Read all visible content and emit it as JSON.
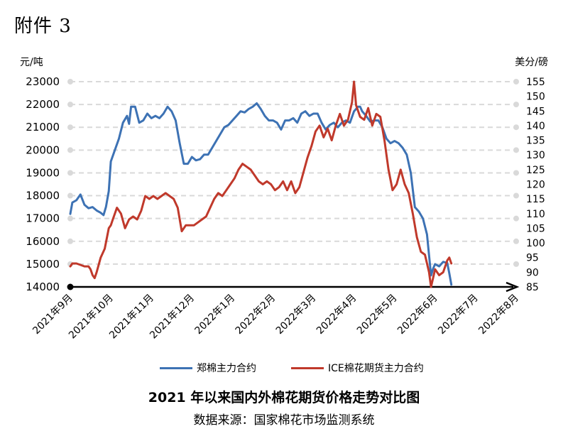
{
  "header": {
    "attachment_label": "附件 3"
  },
  "chart_data": {
    "type": "line",
    "title": "2021 年以来国内外棉花期货价格走势对比图",
    "source": "数据来源：国家棉花市场监测系统",
    "ylabel_left": "元/吨",
    "ylabel_right": "美分/磅",
    "ylim_left": [
      14000,
      23000
    ],
    "ylim_right": [
      85,
      155
    ],
    "yticks_left": [
      "23000",
      "22000",
      "21000",
      "20000",
      "19000",
      "18000",
      "17000",
      "16000",
      "15000",
      "14000"
    ],
    "yticks_right": [
      "155",
      "150",
      "145",
      "140",
      "135",
      "130",
      "125",
      "120",
      "115",
      "110",
      "105",
      "100",
      "95",
      "90",
      "85"
    ],
    "xticks": [
      "2021年9月",
      "2021年10月",
      "2021年11月",
      "2021年12月",
      "2022年1月",
      "2022年2月",
      "2022年3月",
      "2022年4月",
      "2022年5月",
      "2022年6月",
      "2022年7月",
      "2022年8月"
    ],
    "grid": true,
    "legend_position": "bottom",
    "series": [
      {
        "name": "郑棉主力合约",
        "axis": "left",
        "color": "#3d72b4",
        "points": [
          [
            0,
            17200
          ],
          [
            0.05,
            17700
          ],
          [
            0.15,
            17800
          ],
          [
            0.25,
            18050
          ],
          [
            0.35,
            17600
          ],
          [
            0.45,
            17450
          ],
          [
            0.55,
            17500
          ],
          [
            0.65,
            17350
          ],
          [
            0.75,
            17250
          ],
          [
            0.82,
            17150
          ],
          [
            0.88,
            17500
          ],
          [
            0.95,
            18200
          ],
          [
            1.0,
            19500
          ],
          [
            1.1,
            20000
          ],
          [
            1.2,
            20500
          ],
          [
            1.3,
            21200
          ],
          [
            1.4,
            21500
          ],
          [
            1.45,
            21150
          ],
          [
            1.5,
            21900
          ],
          [
            1.6,
            21900
          ],
          [
            1.7,
            21200
          ],
          [
            1.8,
            21300
          ],
          [
            1.9,
            21600
          ],
          [
            2.0,
            21400
          ],
          [
            2.1,
            21500
          ],
          [
            2.2,
            21400
          ],
          [
            2.3,
            21600
          ],
          [
            2.4,
            21900
          ],
          [
            2.5,
            21700
          ],
          [
            2.6,
            21300
          ],
          [
            2.7,
            20300
          ],
          [
            2.8,
            19400
          ],
          [
            2.9,
            19400
          ],
          [
            3.0,
            19700
          ],
          [
            3.1,
            19550
          ],
          [
            3.2,
            19600
          ],
          [
            3.3,
            19800
          ],
          [
            3.4,
            19800
          ],
          [
            3.5,
            20100
          ],
          [
            3.6,
            20400
          ],
          [
            3.7,
            20700
          ],
          [
            3.8,
            21000
          ],
          [
            3.9,
            21100
          ],
          [
            4.0,
            21300
          ],
          [
            4.1,
            21500
          ],
          [
            4.2,
            21700
          ],
          [
            4.3,
            21650
          ],
          [
            4.4,
            21800
          ],
          [
            4.5,
            21900
          ],
          [
            4.6,
            22050
          ],
          [
            4.7,
            21800
          ],
          [
            4.8,
            21500
          ],
          [
            4.9,
            21300
          ],
          [
            5.0,
            21300
          ],
          [
            5.1,
            21200
          ],
          [
            5.2,
            20900
          ],
          [
            5.3,
            21300
          ],
          [
            5.4,
            21300
          ],
          [
            5.5,
            21400
          ],
          [
            5.6,
            21200
          ],
          [
            5.7,
            21600
          ],
          [
            5.8,
            21700
          ],
          [
            5.9,
            21500
          ],
          [
            6.0,
            21600
          ],
          [
            6.1,
            21600
          ],
          [
            6.2,
            21200
          ],
          [
            6.3,
            20900
          ],
          [
            6.4,
            21100
          ],
          [
            6.5,
            21200
          ],
          [
            6.6,
            21000
          ],
          [
            6.7,
            21200
          ],
          [
            6.8,
            21300
          ],
          [
            6.9,
            21200
          ],
          [
            7.0,
            21700
          ],
          [
            7.1,
            21900
          ],
          [
            7.15,
            21900
          ],
          [
            7.2,
            21700
          ],
          [
            7.3,
            21500
          ],
          [
            7.4,
            21250
          ],
          [
            7.5,
            21300
          ],
          [
            7.6,
            21300
          ],
          [
            7.7,
            21000
          ],
          [
            7.8,
            20500
          ],
          [
            7.9,
            20300
          ],
          [
            8.0,
            20400
          ],
          [
            8.1,
            20300
          ],
          [
            8.2,
            20100
          ],
          [
            8.3,
            19800
          ],
          [
            8.4,
            19000
          ],
          [
            8.5,
            17500
          ],
          [
            8.6,
            17300
          ],
          [
            8.7,
            17000
          ],
          [
            8.8,
            16300
          ],
          [
            8.9,
            14500
          ],
          [
            8.95,
            14800
          ],
          [
            9.0,
            15000
          ],
          [
            9.1,
            14900
          ],
          [
            9.2,
            15100
          ],
          [
            9.3,
            15050
          ],
          [
            9.35,
            14600
          ],
          [
            9.4,
            14100
          ]
        ]
      },
      {
        "name": "ICE棉花期货主力合约",
        "axis": "right",
        "color": "#c0392b",
        "points": [
          [
            0,
            92
          ],
          [
            0.05,
            93
          ],
          [
            0.15,
            93
          ],
          [
            0.25,
            92.5
          ],
          [
            0.35,
            92
          ],
          [
            0.45,
            92
          ],
          [
            0.5,
            91
          ],
          [
            0.55,
            89
          ],
          [
            0.6,
            88
          ],
          [
            0.65,
            90
          ],
          [
            0.75,
            95
          ],
          [
            0.85,
            98
          ],
          [
            0.95,
            105
          ],
          [
            1.0,
            106
          ],
          [
            1.05,
            108
          ],
          [
            1.15,
            112
          ],
          [
            1.25,
            110
          ],
          [
            1.35,
            105
          ],
          [
            1.45,
            108
          ],
          [
            1.55,
            109
          ],
          [
            1.65,
            108
          ],
          [
            1.75,
            111
          ],
          [
            1.85,
            116
          ],
          [
            1.95,
            115
          ],
          [
            2.05,
            116
          ],
          [
            2.15,
            115
          ],
          [
            2.25,
            116
          ],
          [
            2.35,
            117
          ],
          [
            2.45,
            116
          ],
          [
            2.55,
            115
          ],
          [
            2.65,
            112
          ],
          [
            2.75,
            104
          ],
          [
            2.85,
            106
          ],
          [
            2.95,
            106
          ],
          [
            3.05,
            106
          ],
          [
            3.15,
            107
          ],
          [
            3.25,
            108
          ],
          [
            3.35,
            109
          ],
          [
            3.45,
            112
          ],
          [
            3.55,
            115
          ],
          [
            3.65,
            117
          ],
          [
            3.75,
            116
          ],
          [
            3.85,
            118
          ],
          [
            3.95,
            120
          ],
          [
            4.05,
            122
          ],
          [
            4.15,
            125
          ],
          [
            4.25,
            127
          ],
          [
            4.35,
            126
          ],
          [
            4.45,
            125
          ],
          [
            4.55,
            123
          ],
          [
            4.65,
            121
          ],
          [
            4.75,
            120
          ],
          [
            4.85,
            121
          ],
          [
            4.95,
            120
          ],
          [
            5.05,
            118
          ],
          [
            5.15,
            119
          ],
          [
            5.25,
            121
          ],
          [
            5.35,
            118
          ],
          [
            5.45,
            121
          ],
          [
            5.55,
            117
          ],
          [
            5.65,
            119
          ],
          [
            5.75,
            124
          ],
          [
            5.85,
            129
          ],
          [
            5.95,
            133
          ],
          [
            6.05,
            138
          ],
          [
            6.15,
            140
          ],
          [
            6.25,
            136
          ],
          [
            6.35,
            139
          ],
          [
            6.45,
            135
          ],
          [
            6.55,
            140
          ],
          [
            6.65,
            144
          ],
          [
            6.75,
            140
          ],
          [
            6.85,
            142
          ],
          [
            6.95,
            148
          ],
          [
            7.0,
            155
          ],
          [
            7.05,
            147
          ],
          [
            7.15,
            143
          ],
          [
            7.25,
            142
          ],
          [
            7.35,
            146
          ],
          [
            7.45,
            140
          ],
          [
            7.55,
            144
          ],
          [
            7.65,
            143
          ],
          [
            7.75,
            135
          ],
          [
            7.85,
            125
          ],
          [
            7.95,
            118
          ],
          [
            8.05,
            120
          ],
          [
            8.15,
            125
          ],
          [
            8.25,
            120
          ],
          [
            8.35,
            117
          ],
          [
            8.45,
            110
          ],
          [
            8.55,
            102
          ],
          [
            8.65,
            97
          ],
          [
            8.75,
            96
          ],
          [
            8.85,
            90
          ],
          [
            8.9,
            85
          ],
          [
            9.0,
            91
          ],
          [
            9.1,
            89
          ],
          [
            9.2,
            90
          ],
          [
            9.3,
            94
          ],
          [
            9.35,
            95
          ],
          [
            9.4,
            93
          ]
        ]
      }
    ]
  }
}
